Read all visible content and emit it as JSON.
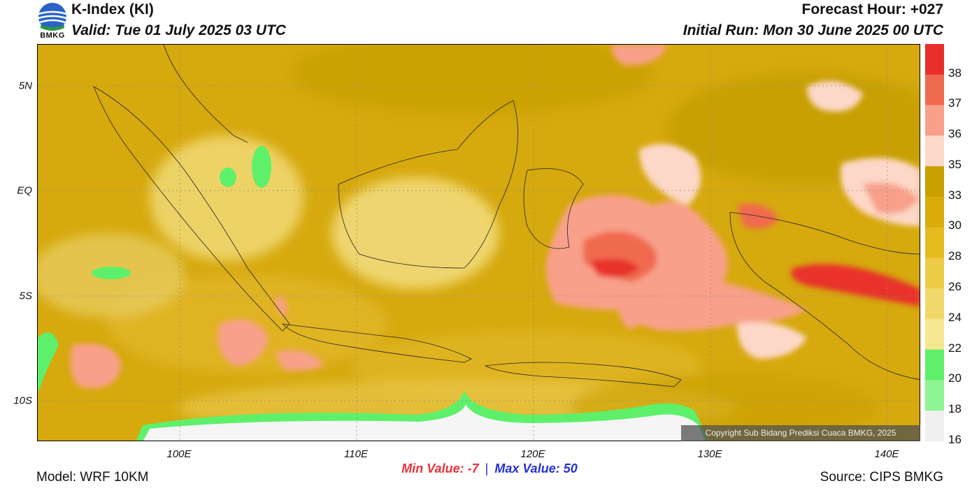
{
  "header": {
    "title": "K-Index (KI)",
    "valid": "Valid: Tue 01 July 2025 03 UTC",
    "forecast_hour": "Forecast Hour: +027",
    "initial_run": "Initial Run: Mon 30 June 2025 00 UTC",
    "logo_text": "BMKG"
  },
  "axes": {
    "lat_labels": [
      "5N",
      "EQ",
      "5S",
      "10S"
    ],
    "lon_labels": [
      "100E",
      "110E",
      "120E",
      "130E",
      "140E"
    ]
  },
  "colorbar": {
    "labels": [
      "38",
      "37",
      "36",
      "35",
      "33",
      "30",
      "28",
      "26",
      "24",
      "22",
      "20",
      "18",
      "16"
    ],
    "colors": [
      "#e8302a",
      "#f06a50",
      "#f8a08a",
      "#fdd8c8",
      "#c9a000",
      "#d9ac0a",
      "#e6bb20",
      "#eccb45",
      "#f0d96a",
      "#f5e690",
      "#5ef06a",
      "#8ef592",
      "#f0f0f0"
    ]
  },
  "stats": {
    "min_label": "Min Value:",
    "min_value": "-7",
    "separator": "|",
    "max_label": "Max Value:",
    "max_value": "50"
  },
  "footer": {
    "model": "Model: WRF 10KM",
    "source": "Source: CIPS BMKG",
    "copyright": "Copyright Sub Bidang Prediksi Cuaca BMKG, 2025"
  }
}
